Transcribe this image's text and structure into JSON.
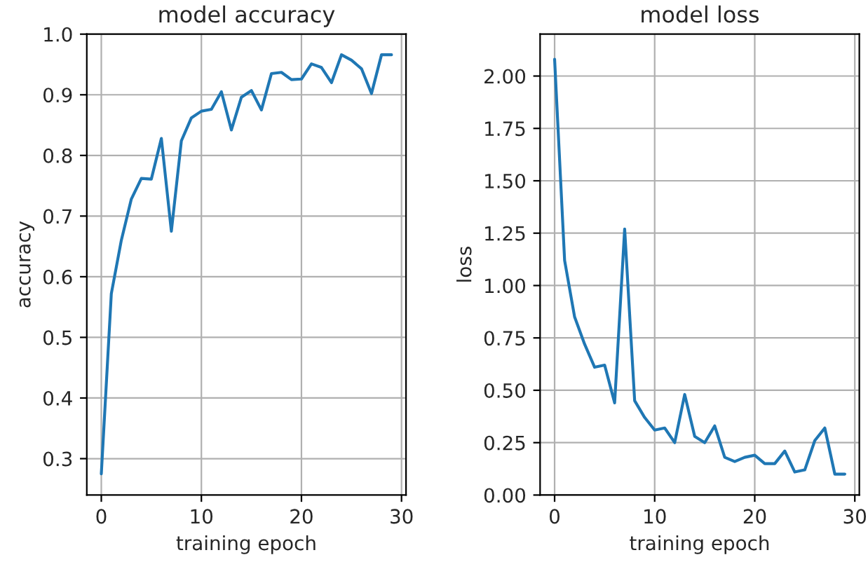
{
  "chart_data": [
    {
      "type": "line",
      "title": "model accuracy",
      "xlabel": "training epoch",
      "ylabel": "accuracy",
      "x": [
        0,
        1,
        2,
        3,
        4,
        5,
        6,
        7,
        8,
        9,
        10,
        11,
        12,
        13,
        14,
        15,
        16,
        17,
        18,
        19,
        20,
        21,
        22,
        23,
        24,
        25,
        26,
        27,
        28,
        29
      ],
      "series": [
        {
          "color": "#1f77b4",
          "values": [
            0.275,
            0.572,
            0.66,
            0.728,
            0.762,
            0.761,
            0.828,
            0.675,
            0.824,
            0.862,
            0.873,
            0.876,
            0.905,
            0.842,
            0.896,
            0.907,
            0.875,
            0.935,
            0.937,
            0.925,
            0.926,
            0.951,
            0.945,
            0.92,
            0.966,
            0.957,
            0.943,
            0.902,
            0.966,
            0.966
          ]
        }
      ],
      "xlim": [
        -1.45,
        30.45
      ],
      "ylim": [
        0.24,
        1.0
      ],
      "xticks": [
        0,
        10,
        20,
        30
      ],
      "yticks": [
        0.3,
        0.4,
        0.5,
        0.6,
        0.7,
        0.8,
        0.9,
        {
          "value": 1.0,
          "label": "1.0"
        }
      ],
      "grid": true
    },
    {
      "type": "line",
      "title": "model loss",
      "xlabel": "training epoch",
      "ylabel": "loss",
      "x": [
        0,
        1,
        2,
        3,
        4,
        5,
        6,
        7,
        8,
        9,
        10,
        11,
        12,
        13,
        14,
        15,
        16,
        17,
        18,
        19,
        20,
        21,
        22,
        23,
        24,
        25,
        26,
        27,
        28,
        29
      ],
      "series": [
        {
          "color": "#1f77b4",
          "values": [
            2.08,
            1.12,
            0.85,
            0.72,
            0.61,
            0.62,
            0.44,
            1.27,
            0.45,
            0.37,
            0.31,
            0.32,
            0.25,
            0.48,
            0.28,
            0.25,
            0.33,
            0.18,
            0.16,
            0.18,
            0.19,
            0.15,
            0.15,
            0.21,
            0.11,
            0.12,
            0.26,
            0.32,
            0.1,
            0.1
          ]
        }
      ],
      "xlim": [
        -1.45,
        30.45
      ],
      "ylim": [
        0,
        2.2
      ],
      "xticks": [
        0,
        10,
        20,
        30
      ],
      "yticks": [
        {
          "value": 0,
          "label": "0.00"
        },
        {
          "value": 0.25,
          "label": "0.25"
        },
        {
          "value": 0.5,
          "label": "0.50"
        },
        {
          "value": 0.75,
          "label": "0.75"
        },
        {
          "value": 1.0,
          "label": "1.00"
        },
        {
          "value": 1.25,
          "label": "1.25"
        },
        {
          "value": 1.5,
          "label": "1.50"
        },
        {
          "value": 1.75,
          "label": "1.75"
        },
        {
          "value": 2.0,
          "label": "2.00"
        }
      ],
      "grid": true
    }
  ]
}
